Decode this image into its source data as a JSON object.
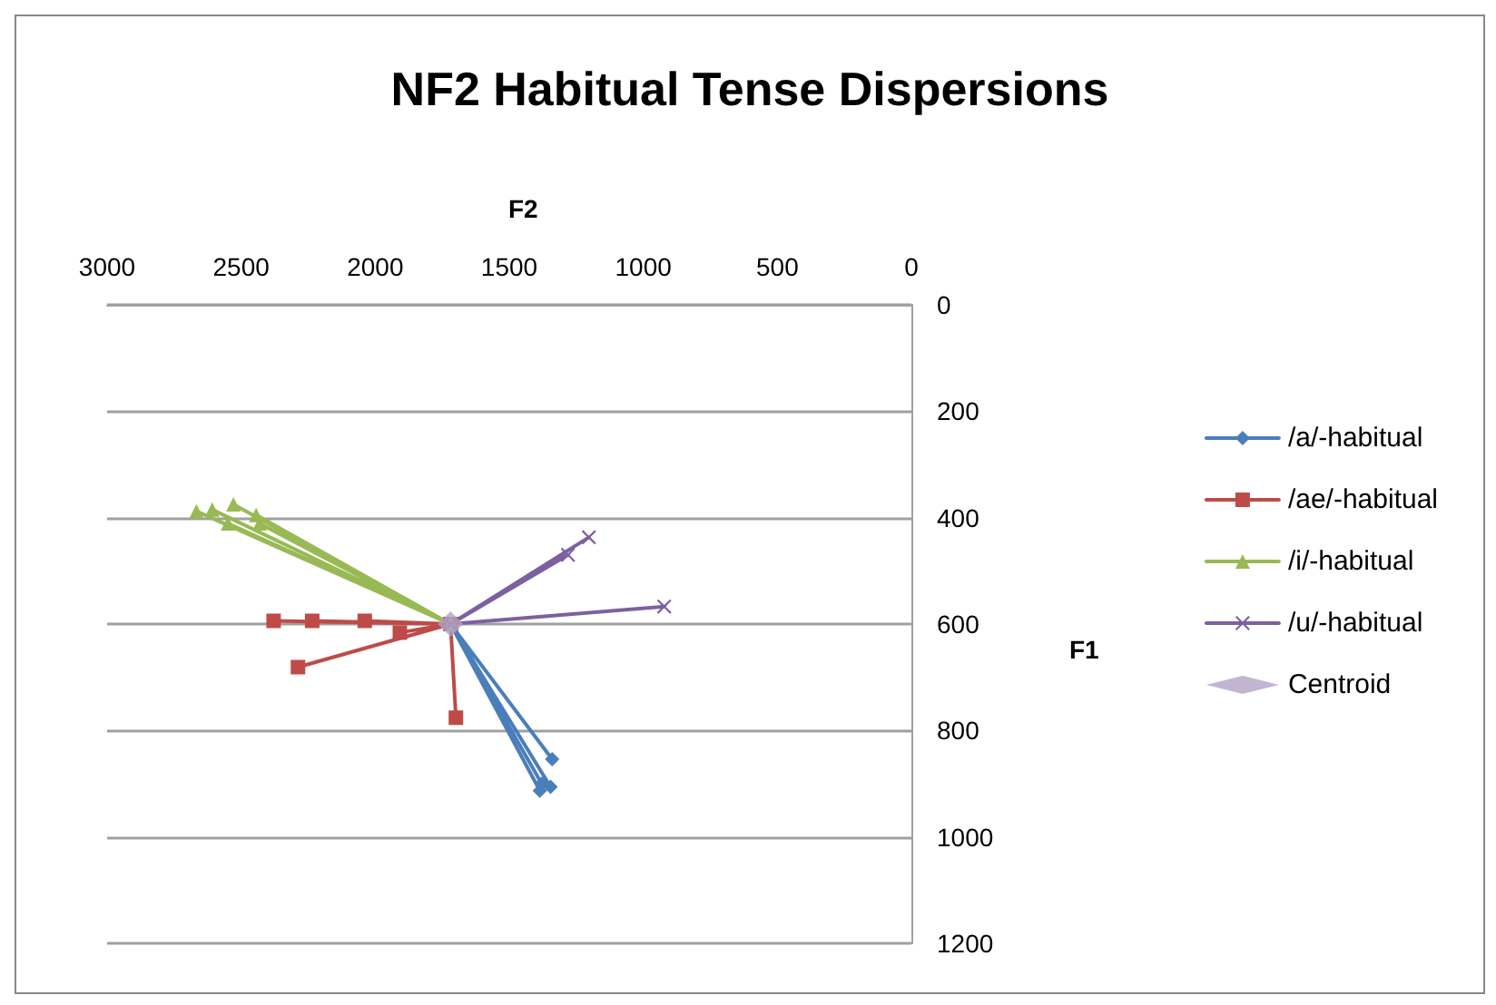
{
  "chart_data": {
    "type": "line",
    "title": "NF2 Habitual Tense Dispersions",
    "xlabel": "F2",
    "ylabel": "F1",
    "xlim": [
      3000,
      0
    ],
    "xticks": [
      0,
      500,
      1000,
      1500,
      2000,
      2500,
      3000
    ],
    "ylim": [
      1200,
      0
    ],
    "yticks": [
      0,
      200,
      400,
      600,
      800,
      1000,
      1200
    ],
    "grid": "y",
    "legend": "right",
    "series": [
      {
        "name": "/a/-habitual",
        "color": "#4a7ebb",
        "marker": "diamond",
        "x": [
          1719,
          1340,
          1719,
          1379,
          1719,
          1346,
          1719,
          1386
        ],
        "values": [
          600,
          854,
          600,
          900,
          600,
          906,
          600,
          913
        ]
      },
      {
        "name": "/ae/-habitual",
        "color": "#be4b48",
        "marker": "square",
        "x": [
          1719,
          2379,
          1719,
          2235,
          1719,
          2039,
          1719,
          1908,
          1719,
          2288,
          1719,
          1699
        ],
        "values": [
          600,
          594,
          600,
          594,
          600,
          594,
          600,
          616,
          600,
          681,
          600,
          776
        ]
      },
      {
        "name": "/i/-habitual",
        "color": "#98b954",
        "marker": "triangle",
        "x": [
          1719,
          2667,
          1719,
          2608,
          1719,
          2529,
          1719,
          2549,
          1719,
          2431,
          1719,
          2444
        ],
        "values": [
          600,
          388,
          600,
          385,
          600,
          375,
          600,
          411,
          600,
          411,
          600,
          395
        ]
      },
      {
        "name": "/u/-habitual",
        "color": "#7d60a0",
        "marker": "cross",
        "x": [
          1719,
          1203,
          1719,
          1281,
          1719,
          922
        ],
        "values": [
          600,
          437,
          600,
          470,
          600,
          567
        ]
      },
      {
        "name": "Centroid",
        "type": "scatter",
        "color": "#b3a2c7",
        "marker": "diamond",
        "x": [
          1719
        ],
        "values": [
          600
        ]
      }
    ]
  }
}
